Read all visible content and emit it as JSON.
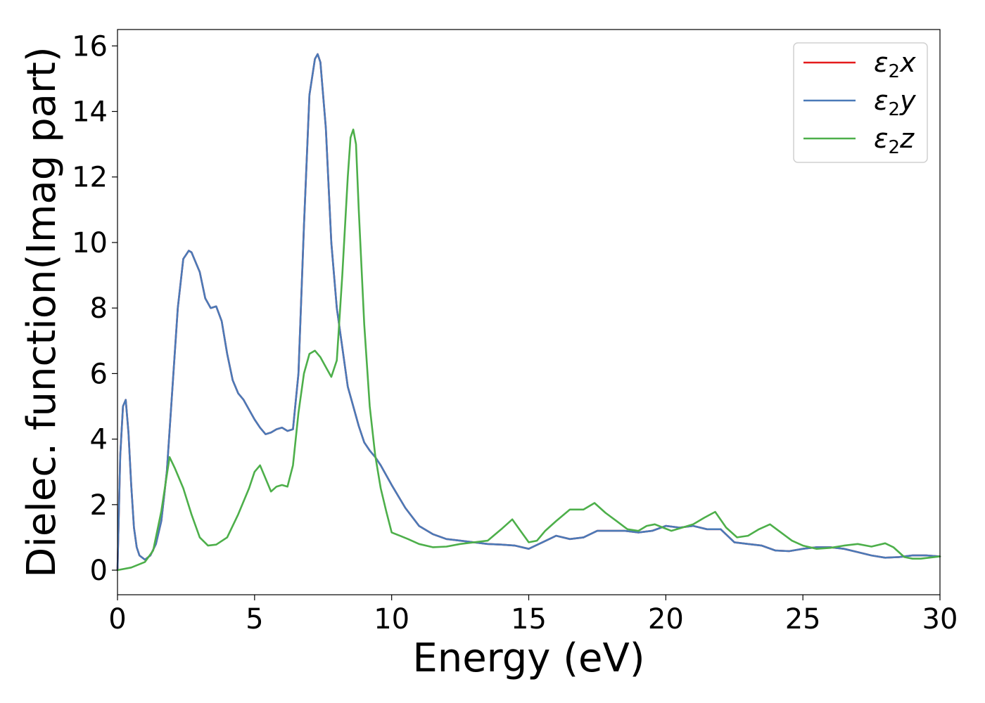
{
  "chart_data": {
    "type": "line",
    "xlabel": "Energy (eV)",
    "ylabel": "Dielec. function(Imag part)",
    "xlim": [
      0,
      30
    ],
    "ylim": [
      -0.75,
      16.5
    ],
    "xticks": [
      0,
      5,
      10,
      15,
      20,
      25,
      30
    ],
    "yticks": [
      0,
      2,
      4,
      6,
      8,
      10,
      12,
      14,
      16
    ],
    "grid": false,
    "legend_position": "top-right",
    "series": [
      {
        "name": "ε2x",
        "legend_base": "ε",
        "legend_sub": "2",
        "legend_var": "x",
        "color": "#e41a1c",
        "x": [
          0,
          0.1,
          0.2,
          0.3,
          0.4,
          0.5,
          0.6,
          0.7,
          0.8,
          1.0,
          1.2,
          1.4,
          1.6,
          1.8,
          2.0,
          2.2,
          2.4,
          2.6,
          2.7,
          2.8,
          3.0,
          3.2,
          3.4,
          3.6,
          3.8,
          4.0,
          4.2,
          4.4,
          4.6,
          4.8,
          5.0,
          5.2,
          5.4,
          5.6,
          5.8,
          6.0,
          6.2,
          6.4,
          6.6,
          6.8,
          7.0,
          7.2,
          7.3,
          7.4,
          7.6,
          7.8,
          8.0,
          8.2,
          8.4,
          8.6,
          8.8,
          9.0,
          9.2,
          9.4,
          9.6,
          9.8,
          10.0,
          10.5,
          11.0,
          11.5,
          12.0,
          12.5,
          13.0,
          13.5,
          14.0,
          14.5,
          15.0,
          15.5,
          16.0,
          16.5,
          17.0,
          17.5,
          18.0,
          18.5,
          19.0,
          19.5,
          20.0,
          20.5,
          21.0,
          21.5,
          22.0,
          22.5,
          23.0,
          23.5,
          24.0,
          24.5,
          25.0,
          25.5,
          26.0,
          26.5,
          27.0,
          27.5,
          28.0,
          28.5,
          29.0,
          29.5,
          30.0
        ],
        "y": [
          0,
          3.5,
          5.0,
          5.2,
          4.2,
          2.6,
          1.3,
          0.7,
          0.45,
          0.32,
          0.45,
          0.8,
          1.5,
          3.0,
          5.5,
          8.0,
          9.5,
          9.75,
          9.7,
          9.5,
          9.1,
          8.3,
          8.0,
          8.05,
          7.6,
          6.6,
          5.8,
          5.4,
          5.2,
          4.9,
          4.6,
          4.35,
          4.15,
          4.2,
          4.3,
          4.35,
          4.25,
          4.3,
          6.0,
          10.5,
          14.5,
          15.6,
          15.75,
          15.5,
          13.5,
          10.0,
          8.0,
          6.8,
          5.6,
          5.0,
          4.4,
          3.9,
          3.65,
          3.45,
          3.2,
          2.9,
          2.6,
          1.9,
          1.35,
          1.1,
          0.95,
          0.9,
          0.85,
          0.8,
          0.78,
          0.75,
          0.65,
          0.85,
          1.05,
          0.95,
          1.0,
          1.2,
          1.2,
          1.2,
          1.15,
          1.2,
          1.35,
          1.3,
          1.35,
          1.25,
          1.25,
          0.85,
          0.8,
          0.75,
          0.6,
          0.58,
          0.65,
          0.7,
          0.7,
          0.65,
          0.55,
          0.45,
          0.38,
          0.4,
          0.45,
          0.45,
          0.42
        ]
      },
      {
        "name": "ε2y",
        "legend_base": "ε",
        "legend_sub": "2",
        "legend_var": "y",
        "color": "#4a7ab8",
        "x": [
          0,
          0.1,
          0.2,
          0.3,
          0.4,
          0.5,
          0.6,
          0.7,
          0.8,
          1.0,
          1.2,
          1.4,
          1.6,
          1.8,
          2.0,
          2.2,
          2.4,
          2.6,
          2.7,
          2.8,
          3.0,
          3.2,
          3.4,
          3.6,
          3.8,
          4.0,
          4.2,
          4.4,
          4.6,
          4.8,
          5.0,
          5.2,
          5.4,
          5.6,
          5.8,
          6.0,
          6.2,
          6.4,
          6.6,
          6.8,
          7.0,
          7.2,
          7.3,
          7.4,
          7.6,
          7.8,
          8.0,
          8.2,
          8.4,
          8.6,
          8.8,
          9.0,
          9.2,
          9.4,
          9.6,
          9.8,
          10.0,
          10.5,
          11.0,
          11.5,
          12.0,
          12.5,
          13.0,
          13.5,
          14.0,
          14.5,
          15.0,
          15.5,
          16.0,
          16.5,
          17.0,
          17.5,
          18.0,
          18.5,
          19.0,
          19.5,
          20.0,
          20.5,
          21.0,
          21.5,
          22.0,
          22.5,
          23.0,
          23.5,
          24.0,
          24.5,
          25.0,
          25.5,
          26.0,
          26.5,
          27.0,
          27.5,
          28.0,
          28.5,
          29.0,
          29.5,
          30.0
        ],
        "y": [
          0,
          3.5,
          5.0,
          5.2,
          4.2,
          2.6,
          1.3,
          0.7,
          0.45,
          0.32,
          0.45,
          0.8,
          1.5,
          3.0,
          5.5,
          8.0,
          9.5,
          9.75,
          9.7,
          9.5,
          9.1,
          8.3,
          8.0,
          8.05,
          7.6,
          6.6,
          5.8,
          5.4,
          5.2,
          4.9,
          4.6,
          4.35,
          4.15,
          4.2,
          4.3,
          4.35,
          4.25,
          4.3,
          6.0,
          10.5,
          14.5,
          15.6,
          15.75,
          15.5,
          13.5,
          10.0,
          8.0,
          6.8,
          5.6,
          5.0,
          4.4,
          3.9,
          3.65,
          3.45,
          3.2,
          2.9,
          2.6,
          1.9,
          1.35,
          1.1,
          0.95,
          0.9,
          0.85,
          0.8,
          0.78,
          0.75,
          0.65,
          0.85,
          1.05,
          0.95,
          1.0,
          1.2,
          1.2,
          1.2,
          1.15,
          1.2,
          1.35,
          1.3,
          1.35,
          1.25,
          1.25,
          0.85,
          0.8,
          0.75,
          0.6,
          0.58,
          0.65,
          0.7,
          0.7,
          0.65,
          0.55,
          0.45,
          0.38,
          0.4,
          0.45,
          0.45,
          0.42
        ]
      },
      {
        "name": "ε2z",
        "legend_base": "ε",
        "legend_sub": "2",
        "legend_var": "z",
        "color": "#4daf4a",
        "x": [
          0,
          0.5,
          1.0,
          1.3,
          1.6,
          1.9,
          2.1,
          2.4,
          2.7,
          3.0,
          3.3,
          3.6,
          4.0,
          4.4,
          4.8,
          5.0,
          5.2,
          5.4,
          5.6,
          5.8,
          6.0,
          6.2,
          6.4,
          6.6,
          6.8,
          7.0,
          7.2,
          7.4,
          7.6,
          7.8,
          8.0,
          8.2,
          8.4,
          8.5,
          8.6,
          8.7,
          8.8,
          9.0,
          9.2,
          9.4,
          9.6,
          9.8,
          10.0,
          10.3,
          10.6,
          11.0,
          11.5,
          12.0,
          12.5,
          13.0,
          13.5,
          14.0,
          14.4,
          14.7,
          15.0,
          15.3,
          15.6,
          16.0,
          16.5,
          17.0,
          17.4,
          17.8,
          18.2,
          18.6,
          19.0,
          19.3,
          19.6,
          19.9,
          20.2,
          20.6,
          21.0,
          21.4,
          21.8,
          22.2,
          22.6,
          23.0,
          23.4,
          23.8,
          24.2,
          24.6,
          25.0,
          25.5,
          26.0,
          26.5,
          27.0,
          27.5,
          28.0,
          28.3,
          28.7,
          29.0,
          29.3,
          29.6,
          30.0
        ],
        "y": [
          0,
          0.08,
          0.25,
          0.6,
          1.8,
          3.45,
          3.1,
          2.5,
          1.7,
          1.0,
          0.75,
          0.78,
          1.0,
          1.7,
          2.5,
          3.0,
          3.2,
          2.8,
          2.4,
          2.55,
          2.6,
          2.55,
          3.2,
          4.8,
          6.0,
          6.6,
          6.7,
          6.5,
          6.2,
          5.9,
          6.4,
          9.0,
          12.0,
          13.2,
          13.45,
          13.0,
          11.0,
          7.5,
          5.0,
          3.5,
          2.5,
          1.8,
          1.15,
          1.05,
          0.95,
          0.8,
          0.7,
          0.72,
          0.8,
          0.85,
          0.9,
          1.25,
          1.55,
          1.2,
          0.85,
          0.9,
          1.2,
          1.5,
          1.85,
          1.85,
          2.05,
          1.75,
          1.5,
          1.25,
          1.2,
          1.35,
          1.4,
          1.3,
          1.2,
          1.3,
          1.4,
          1.6,
          1.78,
          1.3,
          1.0,
          1.05,
          1.25,
          1.4,
          1.15,
          0.9,
          0.75,
          0.65,
          0.68,
          0.75,
          0.8,
          0.72,
          0.82,
          0.7,
          0.4,
          0.35,
          0.35,
          0.38,
          0.42
        ]
      }
    ]
  }
}
